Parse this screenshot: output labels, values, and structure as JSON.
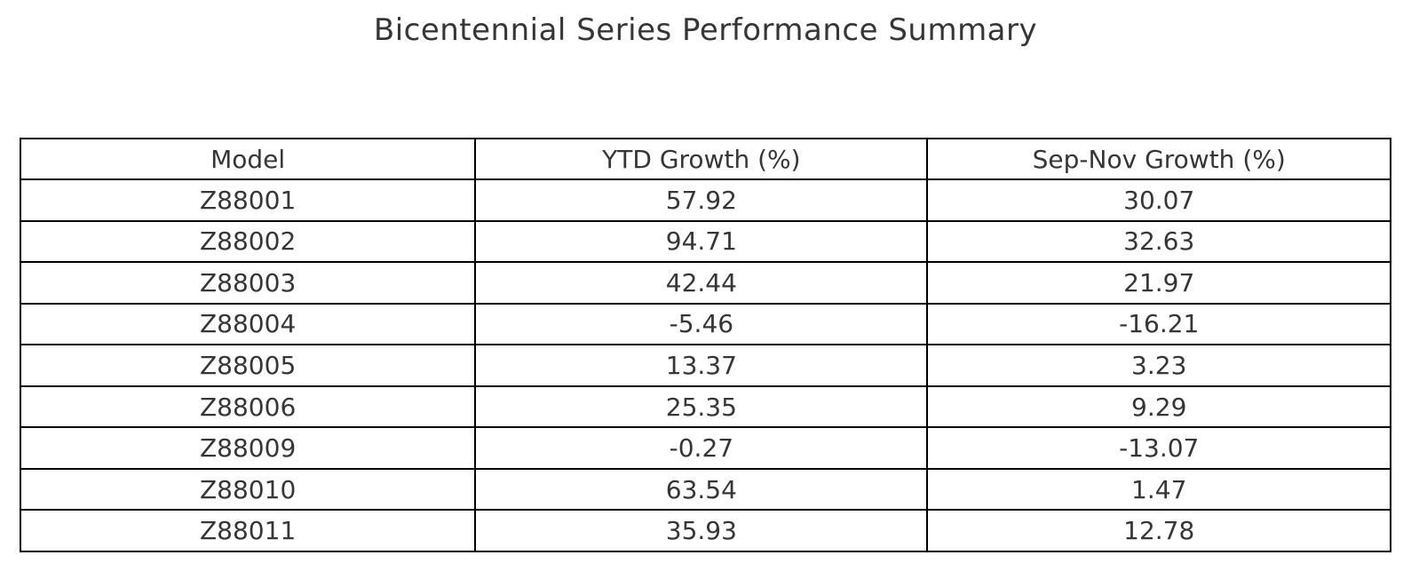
{
  "title": "Bicentennial Series Performance Summary",
  "colors": {
    "background": "#ffffff",
    "text": "#363636",
    "border": "#000000"
  },
  "chart_data": {
    "type": "table",
    "title": "Bicentennial Series Performance Summary",
    "columns": [
      "Model",
      "YTD Growth (%)",
      "Sep-Nov Growth (%)"
    ],
    "rows": [
      [
        "Z88001",
        "57.92",
        "30.07"
      ],
      [
        "Z88002",
        "94.71",
        "32.63"
      ],
      [
        "Z88003",
        "42.44",
        "21.97"
      ],
      [
        "Z88004",
        "-5.46",
        "-16.21"
      ],
      [
        "Z88005",
        "13.37",
        "3.23"
      ],
      [
        "Z88006",
        "25.35",
        "9.29"
      ],
      [
        "Z88009",
        "-0.27",
        "-13.07"
      ],
      [
        "Z88010",
        "63.54",
        "1.47"
      ],
      [
        "Z88011",
        "35.93",
        "12.78"
      ]
    ]
  }
}
